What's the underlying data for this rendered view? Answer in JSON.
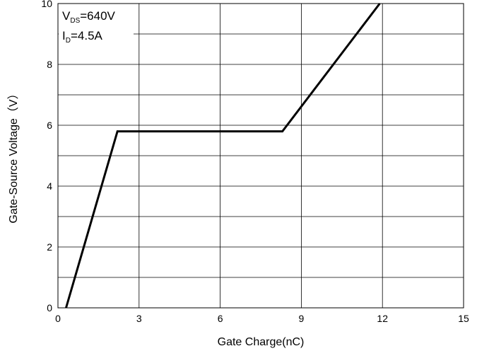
{
  "chart_data": {
    "type": "line",
    "title": "",
    "xlabel": "Gate Charge(nC)",
    "ylabel": "Gate-Source Voltage（V）",
    "xlim": [
      0,
      15
    ],
    "ylim": [
      0,
      10
    ],
    "grid": true,
    "x_ticks": [
      0,
      3,
      6,
      9,
      12,
      15
    ],
    "x_tick_labels": [
      "0",
      "3",
      "6",
      "9",
      "12",
      "15"
    ],
    "y_ticks": [
      0,
      2,
      4,
      6,
      8,
      10
    ],
    "y_tick_labels": [
      "0",
      "2",
      "4",
      "6",
      "8",
      "10"
    ],
    "series": [
      {
        "x": [
          0.3,
          2.2,
          8.3,
          11.9
        ],
        "y": [
          0,
          5.8,
          5.8,
          10
        ],
        "color": "#000000"
      }
    ],
    "annotations": {
      "vds": {
        "main": "V",
        "sub": "DS",
        "rest": "=640V"
      },
      "id": {
        "main": "I",
        "sub": "D",
        "rest": "=4.5A"
      }
    }
  }
}
